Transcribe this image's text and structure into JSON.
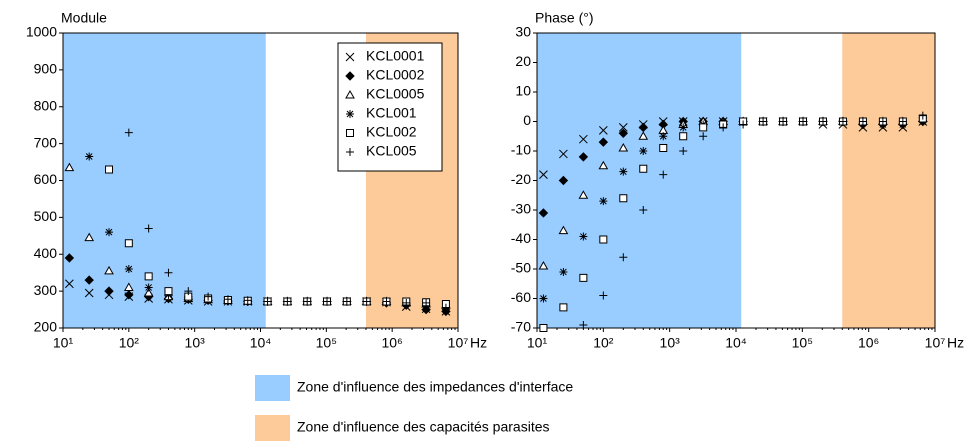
{
  "zones": [
    {
      "range": [
        10,
        12000
      ],
      "color": "#99ccff",
      "label": "Zone d'influence des impedances d'interface"
    },
    {
      "range": [
        400000,
        10000000
      ],
      "color": "#fdca99",
      "label": "Zone d'influence des capacités parasites"
    }
  ],
  "chart_data": [
    {
      "type": "scatter",
      "title": "Module",
      "xlabel": "Hz",
      "xscale": "log",
      "legend": "upper right",
      "xlim": [
        10,
        10000000
      ],
      "ylim": [
        200,
        1000
      ],
      "xticks": [
        {
          "value": 10,
          "label": "10¹"
        },
        {
          "value": 100,
          "label": "10²"
        },
        {
          "value": 1000,
          "label": "10³"
        },
        {
          "value": 10000,
          "label": "10⁴"
        },
        {
          "value": 100000,
          "label": "10⁵"
        },
        {
          "value": 1000000,
          "label": "10⁶"
        },
        {
          "value": 10000000,
          "label": "10⁷"
        }
      ],
      "yticks": [
        200,
        300,
        400,
        500,
        600,
        700,
        800,
        900,
        1000
      ],
      "x": [
        12.5,
        25,
        50,
        100,
        200,
        400,
        800,
        1600,
        3200,
        6400,
        12800,
        25600,
        51200,
        102400,
        204800,
        409600,
        819200,
        1638400,
        3276800,
        6553600
      ],
      "series": [
        {
          "name": "KCL0001",
          "marker": "x",
          "color": "#000000",
          "values": [
            320,
            295,
            290,
            285,
            280,
            278,
            275,
            272,
            272,
            272,
            272,
            272,
            272,
            272,
            272,
            272,
            270,
            258,
            252,
            245
          ]
        },
        {
          "name": "KCL0002",
          "marker": "diamond",
          "color": "#000000",
          "values": [
            390,
            330,
            300,
            290,
            285,
            280,
            278,
            275,
            273,
            272,
            272,
            272,
            272,
            272,
            272,
            272,
            268,
            262,
            250,
            245
          ]
        },
        {
          "name": "KCL0005",
          "marker": "triangle",
          "color": "#000000",
          "values": [
            635,
            445,
            355,
            310,
            295,
            285,
            280,
            277,
            275,
            273,
            272,
            272,
            272,
            272,
            272,
            272,
            272,
            268,
            265,
            262
          ]
        },
        {
          "name": "KCL001",
          "marker": "star",
          "color": "#000000",
          "values": [
            null,
            665,
            460,
            360,
            310,
            290,
            282,
            278,
            275,
            273,
            272,
            272,
            272,
            272,
            272,
            272,
            270,
            268,
            260,
            250
          ]
        },
        {
          "name": "KCL002",
          "marker": "square",
          "color": "#000000",
          "values": [
            null,
            null,
            630,
            430,
            340,
            300,
            285,
            280,
            276,
            274,
            272,
            272,
            272,
            272,
            272,
            272,
            272,
            272,
            270,
            265
          ]
        },
        {
          "name": "KCL005",
          "marker": "plus",
          "color": "#000000",
          "values": [
            null,
            null,
            null,
            730,
            470,
            350,
            300,
            285,
            278,
            275,
            272,
            272,
            272,
            272,
            272,
            272,
            272,
            268,
            268,
            255
          ]
        }
      ]
    },
    {
      "type": "scatter",
      "title": "Phase (°)",
      "xlabel": "Hz",
      "xscale": "log",
      "xlim": [
        10,
        10000000
      ],
      "ylim": [
        -70,
        30
      ],
      "xticks": [
        {
          "value": 10,
          "label": "10¹"
        },
        {
          "value": 100,
          "label": "10²"
        },
        {
          "value": 1000,
          "label": "10³"
        },
        {
          "value": 10000,
          "label": "10⁴"
        },
        {
          "value": 100000,
          "label": "10⁵"
        },
        {
          "value": 1000000,
          "label": "10⁶"
        },
        {
          "value": 10000000,
          "label": "10⁷"
        }
      ],
      "yticks": [
        -70,
        -60,
        -50,
        -40,
        -30,
        -20,
        -10,
        0,
        10,
        20,
        30
      ],
      "x": [
        12.5,
        25,
        50,
        100,
        200,
        400,
        800,
        1600,
        3200,
        6400,
        12800,
        25600,
        51200,
        102400,
        204800,
        409600,
        819200,
        1638400,
        3276800,
        6553600
      ],
      "series": [
        {
          "marker": "x",
          "color": "#000000",
          "values": [
            -18,
            -11,
            -6,
            -3,
            -2,
            -1,
            0,
            0,
            0,
            0,
            0,
            0,
            0,
            0,
            -1,
            -1,
            -2,
            -2,
            -2,
            0
          ]
        },
        {
          "marker": "diamond",
          "color": "#000000",
          "values": [
            -31,
            -20,
            -12,
            -7,
            -4,
            -2,
            -1,
            0,
            0,
            0,
            0,
            0,
            0,
            0,
            0,
            0,
            -1,
            -1,
            -1,
            0
          ]
        },
        {
          "marker": "triangle",
          "color": "#000000",
          "values": [
            -49,
            -37,
            -25,
            -15,
            -9,
            -5,
            -3,
            -1,
            0,
            0,
            0,
            0,
            0,
            0,
            0,
            0,
            0,
            0,
            0,
            1
          ]
        },
        {
          "marker": "star",
          "color": "#000000",
          "values": [
            -60,
            -51,
            -39,
            -27,
            -17,
            -10,
            -5,
            -2,
            -1,
            0,
            0,
            0,
            0,
            0,
            0,
            0,
            0,
            -1,
            -1,
            0
          ]
        },
        {
          "marker": "square",
          "color": "#000000",
          "values": [
            -70,
            -63,
            -53,
            -40,
            -26,
            -16,
            -9,
            -5,
            -2,
            -1,
            0,
            0,
            0,
            0,
            0,
            0,
            0,
            0,
            0,
            1
          ]
        },
        {
          "marker": "plus",
          "color": "#000000",
          "values": [
            null,
            null,
            -69,
            -59,
            -46,
            -30,
            -18,
            -10,
            -5,
            -2,
            -1,
            0,
            0,
            0,
            0,
            0,
            0,
            0,
            0,
            2
          ]
        }
      ]
    }
  ]
}
